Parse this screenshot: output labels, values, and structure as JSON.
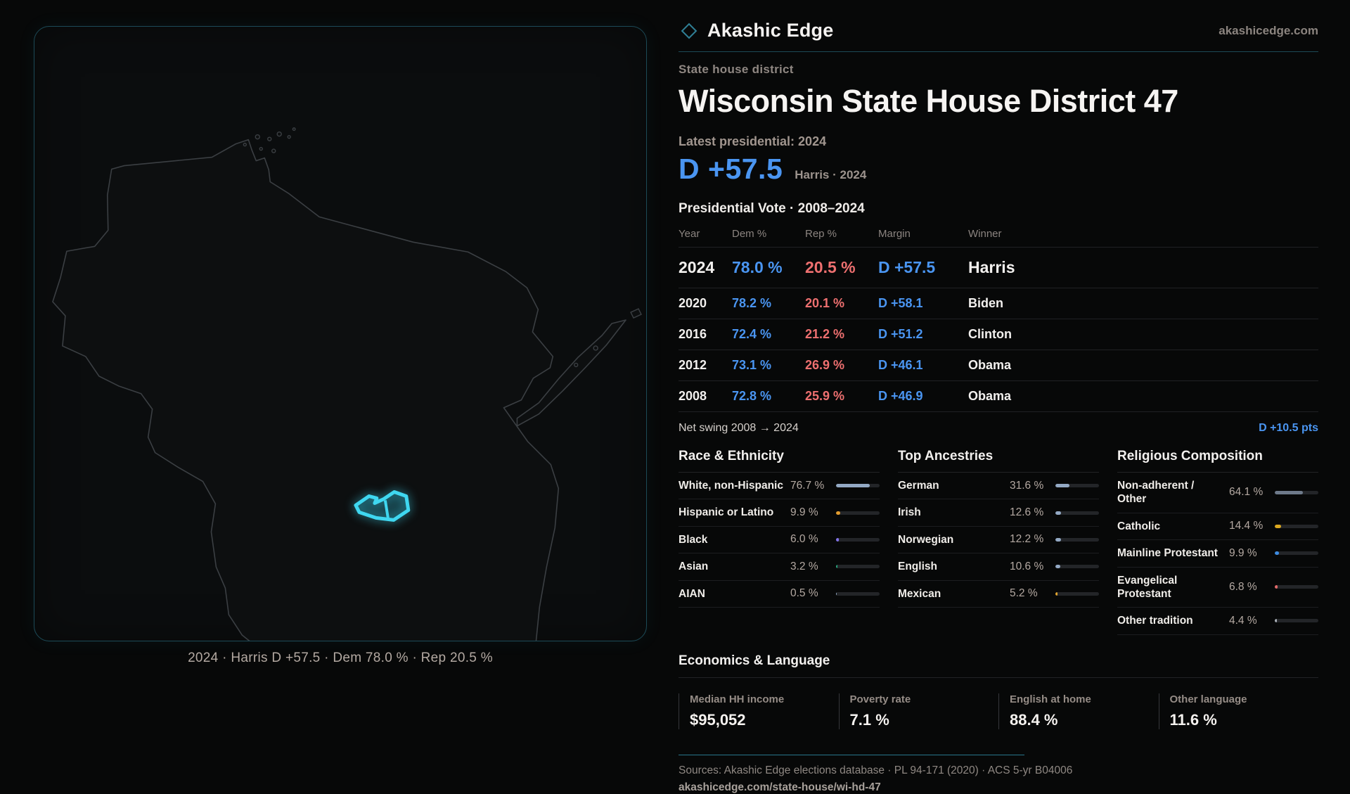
{
  "brand": {
    "name": "Akashic Edge",
    "site": "akashicedge.com"
  },
  "page": {
    "eyebrow": "State house district",
    "title": "Wisconsin State House District 47",
    "latest_label": "Latest presidential: 2024",
    "headline_margin": "D +57.5",
    "headline_sub": "Harris · 2024"
  },
  "colors": {
    "dem": "#4a95f1",
    "rep": "#ee7070",
    "district_glow": "#3fd7f0",
    "panel_border": "#1c4a57"
  },
  "vote_table": {
    "title": "Presidential Vote · 2008–2024",
    "columns": [
      "Year",
      "Dem %",
      "Rep %",
      "Margin",
      "Winner"
    ],
    "rows": [
      {
        "year": "2024",
        "dem": "78.0 %",
        "rep": "20.5 %",
        "margin": "D +57.5",
        "winner": "Harris",
        "highlight": true
      },
      {
        "year": "2020",
        "dem": "78.2 %",
        "rep": "20.1 %",
        "margin": "D +58.1",
        "winner": "Biden",
        "highlight": false
      },
      {
        "year": "2016",
        "dem": "72.4 %",
        "rep": "21.2 %",
        "margin": "D +51.2",
        "winner": "Clinton",
        "highlight": false
      },
      {
        "year": "2012",
        "dem": "73.1 %",
        "rep": "26.9 %",
        "margin": "D +46.1",
        "winner": "Obama",
        "highlight": false
      },
      {
        "year": "2008",
        "dem": "72.8 %",
        "rep": "25.9 %",
        "margin": "D +46.9",
        "winner": "Obama",
        "highlight": false
      }
    ]
  },
  "net_swing": {
    "label": "Net swing 2008 → 2024",
    "value": "D +10.5 pts"
  },
  "sections": [
    {
      "title": "Race & Ethnicity",
      "rows": [
        {
          "label": "White, non-Hispanic",
          "value": "76.7 %",
          "pct": 76.7,
          "color": "#93a9c4"
        },
        {
          "label": "Hispanic or Latino",
          "value": "9.9 %",
          "pct": 9.9,
          "color": "#e29c2e"
        },
        {
          "label": "Black",
          "value": "6.0 %",
          "pct": 6.0,
          "color": "#8374ea"
        },
        {
          "label": "Asian",
          "value": "3.2 %",
          "pct": 3.2,
          "color": "#27a77e"
        },
        {
          "label": "AIAN",
          "value": "0.5 %",
          "pct": 0.5,
          "color": "#93a9c4"
        }
      ]
    },
    {
      "title": "Top Ancestries",
      "rows": [
        {
          "label": "German",
          "value": "31.6 %",
          "pct": 31.6,
          "color": "#93a9c4"
        },
        {
          "label": "Irish",
          "value": "12.6 %",
          "pct": 12.6,
          "color": "#93a9c4"
        },
        {
          "label": "Norwegian",
          "value": "12.2 %",
          "pct": 12.2,
          "color": "#93a9c4"
        },
        {
          "label": "English",
          "value": "10.6 %",
          "pct": 10.6,
          "color": "#93a9c4"
        },
        {
          "label": "Mexican",
          "value": "5.2 %",
          "pct": 5.2,
          "color": "#e2a52e"
        }
      ]
    },
    {
      "title": "Religious Composition",
      "rows": [
        {
          "label": "Non-adherent / Other",
          "value": "64.1 %",
          "pct": 64.1,
          "color": "#6e7a8a"
        },
        {
          "label": "Catholic",
          "value": "14.4 %",
          "pct": 14.4,
          "color": "#dba81f"
        },
        {
          "label": "Mainline Protestant",
          "value": "9.9 %",
          "pct": 9.9,
          "color": "#3d8ce2"
        },
        {
          "label": "Evangelical Protestant",
          "value": "6.8 %",
          "pct": 6.8,
          "color": "#e26a6a"
        },
        {
          "label": "Other tradition",
          "value": "4.4 %",
          "pct": 4.4,
          "color": "#aab0b8"
        }
      ]
    }
  ],
  "economics": {
    "title": "Economics & Language",
    "stats": [
      {
        "label": "Median HH income",
        "value": "$95,052"
      },
      {
        "label": "Poverty rate",
        "value": "7.1 %"
      },
      {
        "label": "English at home",
        "value": "88.4 %"
      },
      {
        "label": "Other language",
        "value": "11.6 %"
      }
    ]
  },
  "map": {
    "caption": "2024 · Harris D +57.5 · Dem 78.0 % · Rep 20.5 %"
  },
  "footer": {
    "sources": "Sources: Akashic Edge elections database · PL 94-171 (2020) · ACS 5-yr B04006",
    "url": "akashicedge.com/state-house/wi-hd-47"
  },
  "chart_data": [
    {
      "type": "table",
      "title": "Presidential Vote · 2008–2024",
      "columns": [
        "Year",
        "Dem %",
        "Rep %",
        "Margin",
        "Winner"
      ],
      "rows": [
        [
          "2024",
          78.0,
          20.5,
          "D +57.5",
          "Harris"
        ],
        [
          "2020",
          78.2,
          20.1,
          "D +58.1",
          "Biden"
        ],
        [
          "2016",
          72.4,
          21.2,
          "D +51.2",
          "Clinton"
        ],
        [
          "2012",
          73.1,
          26.9,
          "D +46.1",
          "Obama"
        ],
        [
          "2008",
          72.8,
          25.9,
          "D +46.9",
          "Obama"
        ]
      ],
      "annotations": [
        "Latest presidential: 2024 — D +57.5 (Harris · 2024)",
        "Net swing 2008 → 2024: D +10.5 pts"
      ]
    },
    {
      "type": "bar",
      "title": "Race & Ethnicity",
      "categories": [
        "White, non-Hispanic",
        "Hispanic or Latino",
        "Black",
        "Asian",
        "AIAN"
      ],
      "values": [
        76.7,
        9.9,
        6.0,
        3.2,
        0.5
      ],
      "xlabel": "",
      "ylabel": "Percent",
      "ylim": [
        0,
        100
      ]
    },
    {
      "type": "bar",
      "title": "Top Ancestries",
      "categories": [
        "German",
        "Irish",
        "Norwegian",
        "English",
        "Mexican"
      ],
      "values": [
        31.6,
        12.6,
        12.2,
        10.6,
        5.2
      ],
      "xlabel": "",
      "ylabel": "Percent",
      "ylim": [
        0,
        100
      ]
    },
    {
      "type": "bar",
      "title": "Religious Composition",
      "categories": [
        "Non-adherent / Other",
        "Catholic",
        "Mainline Protestant",
        "Evangelical Protestant",
        "Other tradition"
      ],
      "values": [
        64.1,
        14.4,
        9.9,
        6.8,
        4.4
      ],
      "xlabel": "",
      "ylabel": "Percent",
      "ylim": [
        0,
        100
      ]
    },
    {
      "type": "bar",
      "title": "Economics & Language",
      "categories": [
        "Median HH income",
        "Poverty rate",
        "English at home",
        "Other language"
      ],
      "values": [
        95052,
        7.1,
        88.4,
        11.6
      ]
    }
  ]
}
